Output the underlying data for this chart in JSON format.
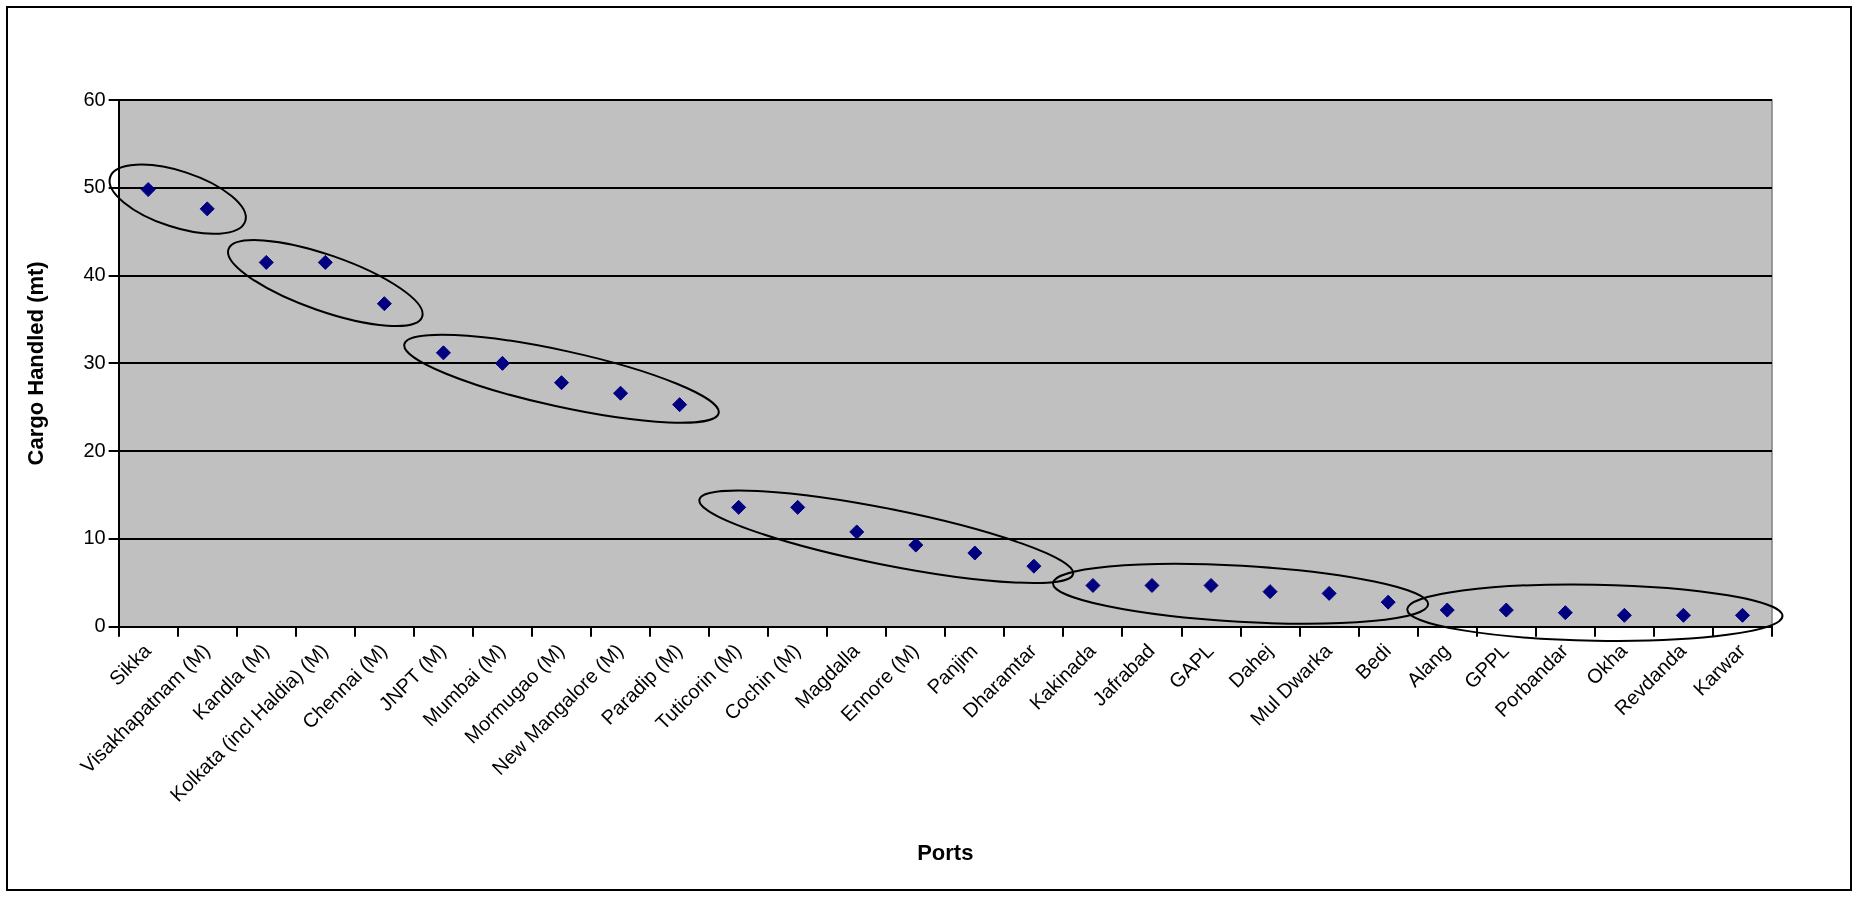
{
  "chart_data": {
    "type": "scatter",
    "xlabel": "Ports",
    "ylabel": "Cargo Handled (mt)",
    "categories": [
      "Sikka",
      "Visakhapatnam (M)",
      "Kandla (M)",
      "Kolkata (incl Haldia) (M)",
      "Chennai (M)",
      "JNPT (M)",
      "Mumbai (M)",
      "Mormugao (M)",
      "New Mangalore (M)",
      "Paradip (M)",
      "Tuticorin (M)",
      "Cochin (M)",
      "Magdalla",
      "Ennore (M)",
      "Panjim",
      "Dharamtar",
      "Kakinada",
      "Jafrabad",
      "GAPL",
      "Dahej",
      "Mul Dwarka",
      "Bedi",
      "Alang",
      "GPPL",
      "Porbandar",
      "Okha",
      "Revdanda",
      "Karwar"
    ],
    "series": [
      {
        "color": "#000080",
        "values": [
          49.8,
          47.6,
          41.5,
          41.5,
          36.8,
          31.2,
          30.0,
          27.8,
          26.6,
          25.3,
          13.6,
          13.6,
          10.8,
          9.3,
          8.4,
          6.9,
          4.7,
          4.7,
          4.7,
          4.0,
          3.8,
          2.8,
          1.9,
          1.9,
          1.6,
          1.3,
          1.3,
          1.3
        ]
      }
    ],
    "ylim": [
      0,
      60
    ],
    "yticks": [
      0,
      10,
      20,
      30,
      40,
      50,
      60
    ],
    "grid": "y",
    "legend": false,
    "marker": "diamond"
  }
}
